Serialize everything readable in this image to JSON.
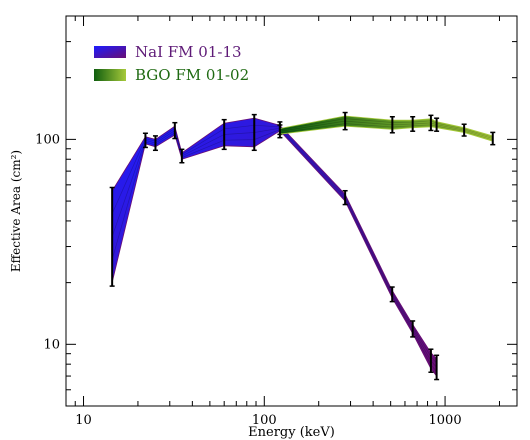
{
  "chart_data": {
    "type": "area",
    "xlabel": "Energy (keV)",
    "ylabel": "Effective Area (cm²)",
    "xscale": "log",
    "yscale": "log",
    "xlim": [
      8,
      2500
    ],
    "ylim": [
      5,
      400
    ],
    "x_ticks": [
      {
        "value": 10,
        "label": "10"
      },
      {
        "value": 100,
        "label": "100"
      },
      {
        "value": 1000,
        "label": "1000"
      }
    ],
    "y_ticks": [
      {
        "value": 10,
        "label": "10"
      },
      {
        "value": 100,
        "label": "100"
      }
    ],
    "grid": false,
    "legend_position": "top-left",
    "series": [
      {
        "name": "NaI FM 01-13",
        "colors": [
          "#1c1cff",
          "#6a0e73"
        ],
        "x": [
          14.4,
          22,
          25,
          32,
          35,
          60,
          88,
          122,
          280,
          510,
          662,
          835,
          898
        ],
        "low": [
          20,
          95,
          92,
          105,
          80,
          93,
          92,
          110,
          50,
          16.8,
          11.3,
          7.6,
          7.0
        ],
        "high": [
          56,
          103,
          100,
          116,
          86,
          120,
          127,
          117,
          54,
          18.3,
          12.5,
          9.1,
          8.5
        ]
      },
      {
        "name": "BGO FM 01-02",
        "colors": [
          "#0f5e0f",
          "#a6c93a"
        ],
        "x": [
          122,
          280,
          511,
          662,
          835,
          898,
          1275,
          1836
        ],
        "low": [
          106,
          116,
          112,
          114,
          115,
          114,
          108,
          98
        ],
        "high": [
          113,
          130,
          124,
          124,
          126,
          122,
          114,
          104
        ]
      }
    ]
  }
}
